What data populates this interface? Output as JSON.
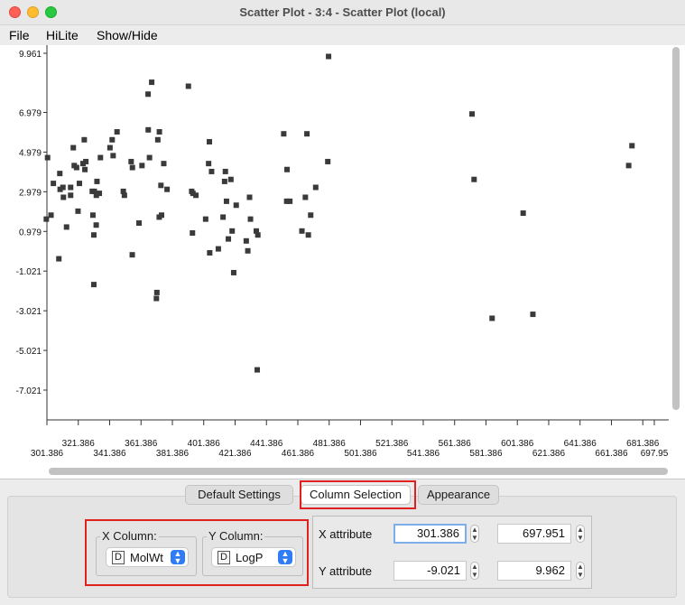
{
  "window": {
    "title": "Scatter Plot - 3:4 - Scatter Plot (local)"
  },
  "menu": {
    "file": "File",
    "hilite": "HiLite",
    "show_hide": "Show/Hide"
  },
  "tabs": {
    "default_settings": "Default Settings",
    "column_selection": "Column Selection",
    "appearance": "Appearance"
  },
  "column_selection": {
    "x_group_label": "X Column:",
    "y_group_label": "Y Column:",
    "x_type_badge": "D",
    "y_type_badge": "D",
    "x_value": "MolWt",
    "y_value": "LogP"
  },
  "attributes": {
    "x_label": "X attribute",
    "y_label": "Y attribute",
    "x_min": "301.386",
    "x_max": "697.951",
    "y_min": "-9.021",
    "y_max": "9.962"
  },
  "colors": {
    "point": "#3a3a3a",
    "highlight": "#e02020",
    "accent": "#2f7cf6"
  },
  "chart_data": {
    "type": "scatter",
    "title": "",
    "xlabel": "MolWt",
    "ylabel": "LogP",
    "xlim": [
      301.386,
      697.951
    ],
    "ylim": [
      -9.021,
      9.962
    ],
    "x_ticks_top": [
      "321.386",
      "361.386",
      "401.386",
      "441.386",
      "481.386",
      "521.386",
      "561.386",
      "601.386",
      "641.386",
      "681.386"
    ],
    "x_ticks_bottom": [
      "301.386",
      "341.386",
      "381.386",
      "421.386",
      "461.386",
      "501.386",
      "541.386",
      "581.386",
      "621.386",
      "661.386",
      "697.95"
    ],
    "y_ticks": [
      "9.961",
      "6.979",
      "4.979",
      "2.979",
      "0.979",
      "-1.021",
      "-3.021",
      "-5.021",
      "-7.021"
    ],
    "points": [
      [
        301.0,
        1.6
      ],
      [
        301.8,
        4.7
      ],
      [
        304.0,
        1.8
      ],
      [
        305.5,
        3.4
      ],
      [
        309.0,
        -0.4
      ],
      [
        309.6,
        3.9
      ],
      [
        309.8,
        3.1
      ],
      [
        311.6,
        3.2
      ],
      [
        311.9,
        2.7
      ],
      [
        313.9,
        1.2
      ],
      [
        316.5,
        3.2
      ],
      [
        316.5,
        2.8
      ],
      [
        318.2,
        5.2
      ],
      [
        318.8,
        4.3
      ],
      [
        320.3,
        4.2
      ],
      [
        321.2,
        2.0
      ],
      [
        322.1,
        3.4
      ],
      [
        324.4,
        4.4
      ],
      [
        325.2,
        5.6
      ],
      [
        325.6,
        4.1
      ],
      [
        326.2,
        4.5
      ],
      [
        330.3,
        3.0
      ],
      [
        330.7,
        1.8
      ],
      [
        331.3,
        0.8
      ],
      [
        331.3,
        -1.7
      ],
      [
        331.6,
        3.0
      ],
      [
        332.8,
        1.3
      ],
      [
        332.9,
        2.8
      ],
      [
        333.3,
        3.5
      ],
      [
        334.8,
        2.9
      ],
      [
        335.5,
        4.7
      ],
      [
        341.6,
        5.2
      ],
      [
        343.0,
        5.6
      ],
      [
        343.6,
        4.8
      ],
      [
        346.1,
        6.0
      ],
      [
        350.1,
        3.0
      ],
      [
        350.8,
        2.8
      ],
      [
        355.1,
        4.5
      ],
      [
        355.8,
        -0.2
      ],
      [
        355.9,
        4.2
      ],
      [
        360.1,
        1.4
      ],
      [
        362.0,
        4.3
      ],
      [
        365.9,
        7.9
      ],
      [
        366.0,
        6.1
      ],
      [
        366.8,
        4.7
      ],
      [
        368.2,
        8.5
      ],
      [
        371.2,
        -2.4
      ],
      [
        371.5,
        -2.1
      ],
      [
        372.1,
        5.6
      ],
      [
        373.0,
        1.7
      ],
      [
        373.1,
        6.0
      ],
      [
        374.1,
        3.3
      ],
      [
        374.5,
        1.8
      ],
      [
        375.9,
        4.4
      ],
      [
        378.0,
        3.1
      ],
      [
        391.6,
        8.3
      ],
      [
        393.7,
        3.0
      ],
      [
        394.2,
        0.9
      ],
      [
        394.5,
        2.9
      ],
      [
        396.4,
        2.8
      ],
      [
        402.6,
        1.6
      ],
      [
        404.5,
        4.4
      ],
      [
        405.0,
        5.5
      ],
      [
        405.2,
        -0.1
      ],
      [
        406.4,
        4.0
      ],
      [
        410.7,
        0.1
      ],
      [
        413.7,
        1.7
      ],
      [
        414.7,
        3.5
      ],
      [
        415.2,
        4.0
      ],
      [
        415.9,
        2.5
      ],
      [
        417.1,
        0.6
      ],
      [
        418.7,
        3.6
      ],
      [
        419.5,
        1.0
      ],
      [
        420.5,
        -1.1
      ],
      [
        422.1,
        2.3
      ],
      [
        428.5,
        0.5
      ],
      [
        429.5,
        0.0
      ],
      [
        430.6,
        2.7
      ],
      [
        431.2,
        1.6
      ],
      [
        434.9,
        1.0
      ],
      [
        435.5,
        -6.0
      ],
      [
        435.9,
        0.8
      ],
      [
        452.4,
        5.9
      ],
      [
        454.3,
        2.5
      ],
      [
        454.5,
        4.1
      ],
      [
        456.3,
        2.5
      ],
      [
        464.0,
        1.0
      ],
      [
        466.2,
        2.7
      ],
      [
        467.2,
        5.9
      ],
      [
        468.1,
        0.8
      ],
      [
        469.6,
        1.8
      ],
      [
        472.8,
        3.2
      ],
      [
        480.5,
        4.5
      ],
      [
        481.0,
        9.8
      ],
      [
        572.5,
        6.9
      ],
      [
        573.8,
        3.6
      ],
      [
        585.3,
        -3.4
      ],
      [
        605.1,
        1.9
      ],
      [
        611.3,
        -3.2
      ],
      [
        672.4,
        4.3
      ],
      [
        674.5,
        5.3
      ]
    ]
  }
}
